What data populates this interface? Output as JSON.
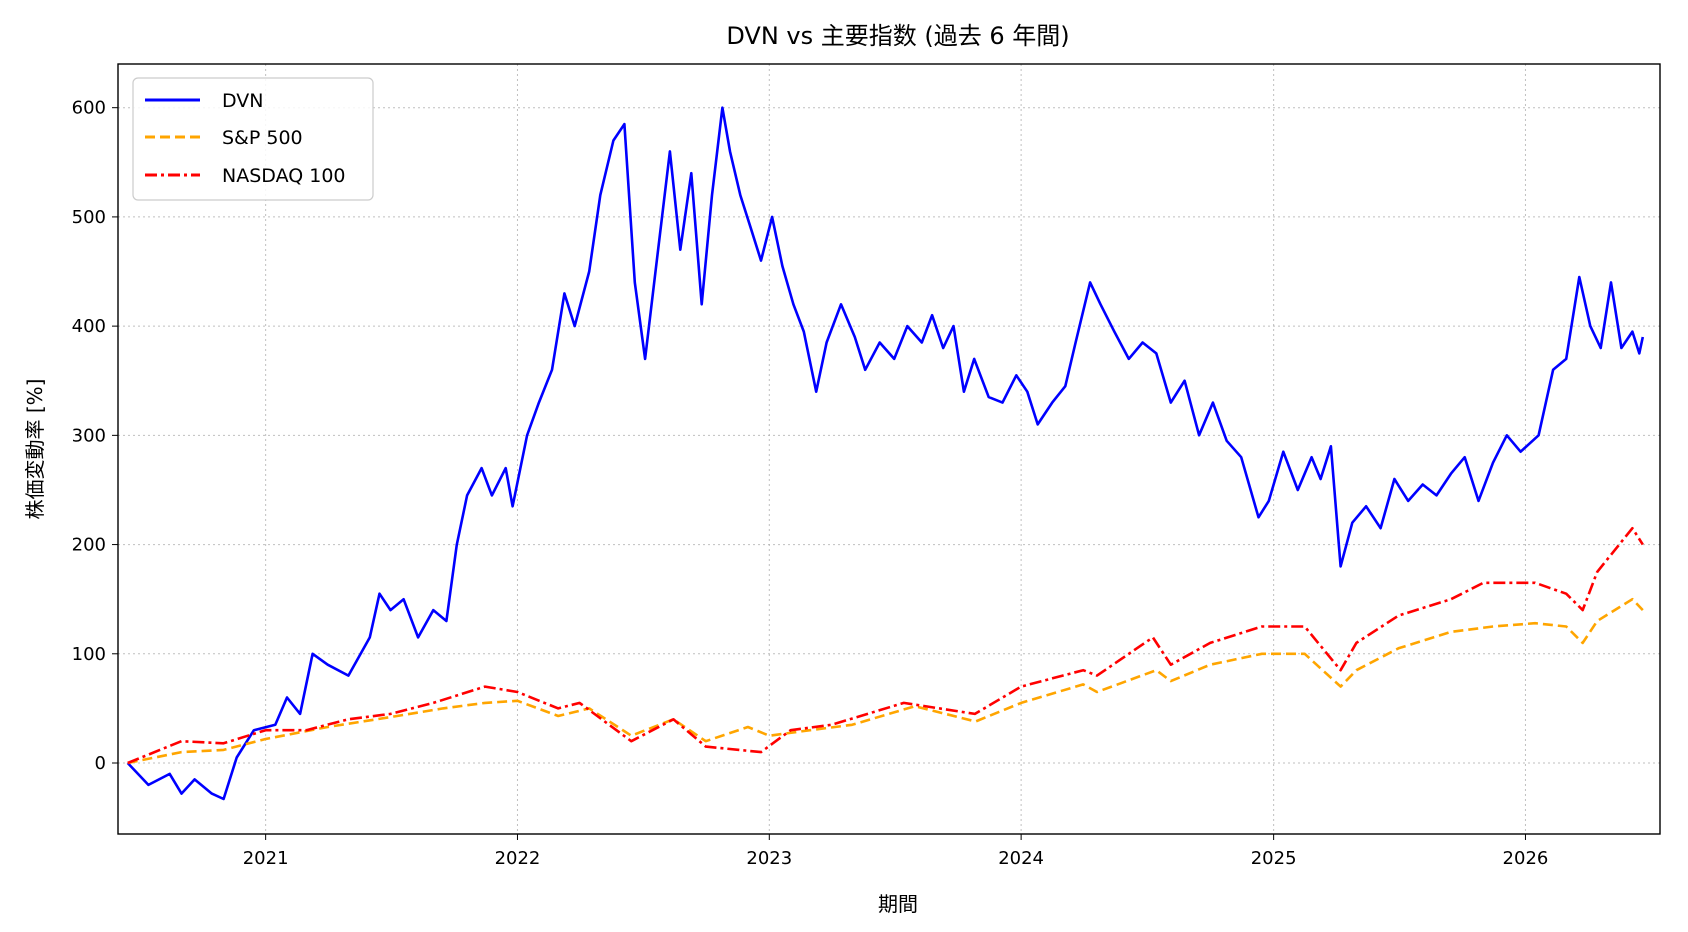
{
  "chart_data": {
    "type": "line",
    "title": "DVN vs 主要指数 (過去 6 年間)",
    "xlabel": "期間",
    "ylabel": "株価変動率 [%]",
    "x_range": [
      "2020-06-01",
      "2026-07-15"
    ],
    "ylim": [
      -65,
      640
    ],
    "x_ticks": [
      {
        "label": "2021",
        "date": "2021-01-01"
      },
      {
        "label": "2022",
        "date": "2022-01-01"
      },
      {
        "label": "2023",
        "date": "2023-01-01"
      },
      {
        "label": "2024",
        "date": "2024-01-01"
      },
      {
        "label": "2025",
        "date": "2025-01-01"
      },
      {
        "label": "2026",
        "date": "2026-01-01"
      }
    ],
    "y_ticks": [
      0,
      100,
      200,
      300,
      400,
      500,
      600
    ],
    "grid": true,
    "legend_position": "top-left",
    "series": [
      {
        "name": "DVN",
        "color": "#0000ff",
        "dash": "solid",
        "points": [
          [
            "2020-06-15",
            0
          ],
          [
            "2020-07-15",
            -20
          ],
          [
            "2020-08-15",
            -10
          ],
          [
            "2020-09-01",
            -28
          ],
          [
            "2020-09-20",
            -15
          ],
          [
            "2020-10-15",
            -28
          ],
          [
            "2020-11-01",
            -33
          ],
          [
            "2020-11-20",
            5
          ],
          [
            "2020-12-15",
            30
          ],
          [
            "2021-01-15",
            35
          ],
          [
            "2021-02-01",
            60
          ],
          [
            "2021-02-20",
            45
          ],
          [
            "2021-03-10",
            100
          ],
          [
            "2021-04-01",
            90
          ],
          [
            "2021-05-01",
            80
          ],
          [
            "2021-06-01",
            115
          ],
          [
            "2021-06-15",
            155
          ],
          [
            "2021-07-01",
            140
          ],
          [
            "2021-07-20",
            150
          ],
          [
            "2021-08-10",
            115
          ],
          [
            "2021-09-01",
            140
          ],
          [
            "2021-09-20",
            130
          ],
          [
            "2021-10-05",
            200
          ],
          [
            "2021-10-20",
            245
          ],
          [
            "2021-11-10",
            270
          ],
          [
            "2021-11-25",
            245
          ],
          [
            "2021-12-15",
            270
          ],
          [
            "2021-12-25",
            235
          ],
          [
            "2022-01-15",
            300
          ],
          [
            "2022-02-01",
            330
          ],
          [
            "2022-02-20",
            360
          ],
          [
            "2022-03-10",
            430
          ],
          [
            "2022-03-25",
            400
          ],
          [
            "2022-04-15",
            450
          ],
          [
            "2022-05-01",
            520
          ],
          [
            "2022-05-20",
            570
          ],
          [
            "2022-06-05",
            585
          ],
          [
            "2022-06-20",
            440
          ],
          [
            "2022-07-05",
            370
          ],
          [
            "2022-07-20",
            450
          ],
          [
            "2022-08-10",
            560
          ],
          [
            "2022-08-25",
            470
          ],
          [
            "2022-09-10",
            540
          ],
          [
            "2022-09-25",
            420
          ],
          [
            "2022-10-10",
            520
          ],
          [
            "2022-10-25",
            600
          ],
          [
            "2022-11-05",
            560
          ],
          [
            "2022-11-20",
            520
          ],
          [
            "2022-12-05",
            490
          ],
          [
            "2022-12-20",
            460
          ],
          [
            "2023-01-05",
            500
          ],
          [
            "2023-01-20",
            455
          ],
          [
            "2023-02-05",
            420
          ],
          [
            "2023-02-20",
            395
          ],
          [
            "2023-03-10",
            340
          ],
          [
            "2023-03-25",
            385
          ],
          [
            "2023-04-15",
            420
          ],
          [
            "2023-05-05",
            390
          ],
          [
            "2023-05-20",
            360
          ],
          [
            "2023-06-10",
            385
          ],
          [
            "2023-07-01",
            370
          ],
          [
            "2023-07-20",
            400
          ],
          [
            "2023-08-10",
            385
          ],
          [
            "2023-08-25",
            410
          ],
          [
            "2023-09-10",
            380
          ],
          [
            "2023-09-25",
            400
          ],
          [
            "2023-10-10",
            340
          ],
          [
            "2023-10-25",
            370
          ],
          [
            "2023-11-15",
            335
          ],
          [
            "2023-12-05",
            330
          ],
          [
            "2023-12-25",
            355
          ],
          [
            "2024-01-10",
            340
          ],
          [
            "2024-01-25",
            310
          ],
          [
            "2024-02-15",
            330
          ],
          [
            "2024-03-05",
            345
          ],
          [
            "2024-03-20",
            385
          ],
          [
            "2024-04-10",
            440
          ],
          [
            "2024-04-25",
            420
          ],
          [
            "2024-05-15",
            395
          ],
          [
            "2024-06-05",
            370
          ],
          [
            "2024-06-25",
            385
          ],
          [
            "2024-07-15",
            375
          ],
          [
            "2024-08-05",
            330
          ],
          [
            "2024-08-25",
            350
          ],
          [
            "2024-09-15",
            300
          ],
          [
            "2024-10-05",
            330
          ],
          [
            "2024-10-25",
            295
          ],
          [
            "2024-11-15",
            280
          ],
          [
            "2024-12-10",
            225
          ],
          [
            "2024-12-25",
            240
          ],
          [
            "2025-01-15",
            285
          ],
          [
            "2025-02-05",
            250
          ],
          [
            "2025-02-25",
            280
          ],
          [
            "2025-03-10",
            260
          ],
          [
            "2025-03-25",
            290
          ],
          [
            "2025-04-08",
            180
          ],
          [
            "2025-04-25",
            220
          ],
          [
            "2025-05-15",
            235
          ],
          [
            "2025-06-05",
            215
          ],
          [
            "2025-06-25",
            260
          ],
          [
            "2025-07-15",
            240
          ],
          [
            "2025-08-05",
            255
          ],
          [
            "2025-08-25",
            245
          ],
          [
            "2025-09-15",
            265
          ],
          [
            "2025-10-05",
            280
          ],
          [
            "2025-10-25",
            240
          ],
          [
            "2025-11-15",
            275
          ],
          [
            "2025-12-05",
            300
          ],
          [
            "2025-12-25",
            285
          ],
          [
            "2026-01-20",
            300
          ],
          [
            "2026-02-10",
            360
          ],
          [
            "2026-03-01",
            370
          ],
          [
            "2026-03-20",
            445
          ],
          [
            "2026-04-05",
            400
          ],
          [
            "2026-04-20",
            380
          ],
          [
            "2026-05-05",
            440
          ],
          [
            "2026-05-20",
            380
          ],
          [
            "2026-06-05",
            395
          ],
          [
            "2026-06-15",
            375
          ],
          [
            "2026-06-20",
            390
          ]
        ]
      },
      {
        "name": "S&P 500",
        "color": "#ffa500",
        "dash": "dashed",
        "points": [
          [
            "2020-06-15",
            0
          ],
          [
            "2020-09-01",
            10
          ],
          [
            "2020-11-01",
            12
          ],
          [
            "2021-01-01",
            22
          ],
          [
            "2021-04-01",
            33
          ],
          [
            "2021-07-01",
            42
          ],
          [
            "2021-09-15",
            50
          ],
          [
            "2021-11-15",
            55
          ],
          [
            "2022-01-01",
            57
          ],
          [
            "2022-03-01",
            43
          ],
          [
            "2022-04-15",
            50
          ],
          [
            "2022-06-15",
            25
          ],
          [
            "2022-08-15",
            40
          ],
          [
            "2022-10-01",
            20
          ],
          [
            "2022-12-01",
            33
          ],
          [
            "2023-01-01",
            25
          ],
          [
            "2023-03-01",
            30
          ],
          [
            "2023-05-01",
            35
          ],
          [
            "2023-07-31",
            52
          ],
          [
            "2023-10-27",
            38
          ],
          [
            "2024-01-01",
            55
          ],
          [
            "2024-03-31",
            72
          ],
          [
            "2024-04-20",
            65
          ],
          [
            "2024-07-15",
            85
          ],
          [
            "2024-08-05",
            75
          ],
          [
            "2024-10-01",
            90
          ],
          [
            "2024-12-15",
            100
          ],
          [
            "2025-02-15",
            100
          ],
          [
            "2025-04-08",
            70
          ],
          [
            "2025-05-01",
            85
          ],
          [
            "2025-07-01",
            105
          ],
          [
            "2025-09-15",
            120
          ],
          [
            "2025-11-15",
            125
          ],
          [
            "2026-01-15",
            128
          ],
          [
            "2026-03-01",
            125
          ],
          [
            "2026-03-25",
            110
          ],
          [
            "2026-04-15",
            130
          ],
          [
            "2026-06-05",
            150
          ],
          [
            "2026-06-20",
            140
          ]
        ]
      },
      {
        "name": "NASDAQ 100",
        "color": "#ff0000",
        "dash": "dashdot",
        "points": [
          [
            "2020-06-15",
            0
          ],
          [
            "2020-09-01",
            20
          ],
          [
            "2020-11-01",
            18
          ],
          [
            "2021-01-01",
            30
          ],
          [
            "2021-03-01",
            30
          ],
          [
            "2021-05-01",
            40
          ],
          [
            "2021-07-01",
            45
          ],
          [
            "2021-09-01",
            55
          ],
          [
            "2021-11-15",
            70
          ],
          [
            "2022-01-01",
            65
          ],
          [
            "2022-03-01",
            50
          ],
          [
            "2022-04-01",
            55
          ],
          [
            "2022-06-15",
            20
          ],
          [
            "2022-08-15",
            40
          ],
          [
            "2022-10-01",
            15
          ],
          [
            "2022-12-20",
            10
          ],
          [
            "2023-02-01",
            30
          ],
          [
            "2023-04-01",
            35
          ],
          [
            "2023-07-15",
            55
          ],
          [
            "2023-10-26",
            45
          ],
          [
            "2024-01-01",
            70
          ],
          [
            "2024-03-31",
            85
          ],
          [
            "2024-04-20",
            80
          ],
          [
            "2024-07-10",
            115
          ],
          [
            "2024-08-05",
            90
          ],
          [
            "2024-10-01",
            110
          ],
          [
            "2024-12-15",
            125
          ],
          [
            "2025-02-15",
            125
          ],
          [
            "2025-04-08",
            85
          ],
          [
            "2025-05-01",
            110
          ],
          [
            "2025-07-01",
            135
          ],
          [
            "2025-09-15",
            150
          ],
          [
            "2025-11-01",
            165
          ],
          [
            "2026-01-15",
            165
          ],
          [
            "2026-03-01",
            155
          ],
          [
            "2026-03-25",
            140
          ],
          [
            "2026-04-15",
            175
          ],
          [
            "2026-06-05",
            215
          ],
          [
            "2026-06-20",
            200
          ]
        ]
      }
    ]
  }
}
